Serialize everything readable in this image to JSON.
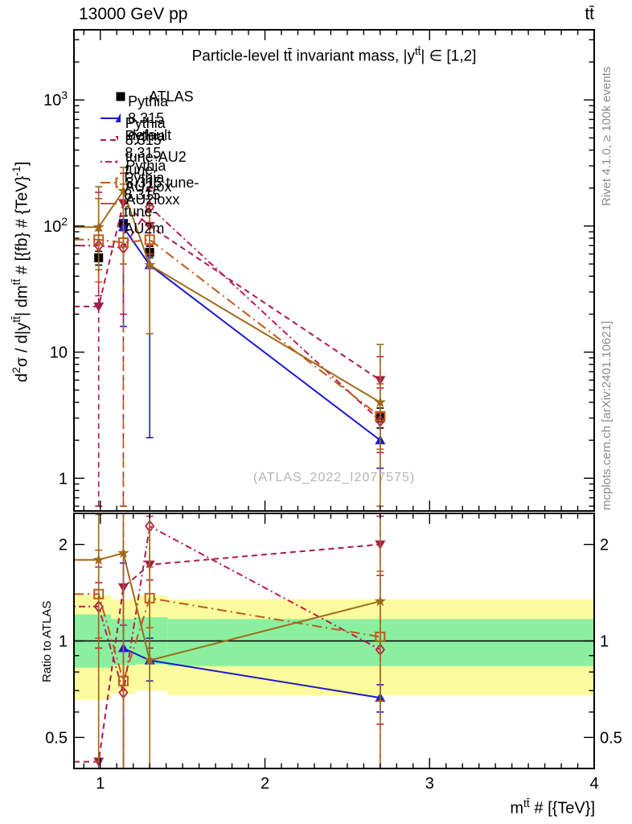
{
  "header": {
    "beam": "13000 GeV pp",
    "process": "tt̄"
  },
  "title_parts": {
    "pre": "Particle-level tt̄ invariant mass, |y",
    "sup": "tt̄",
    "post": "| ∈ [1,2]"
  },
  "watermark": "(ATLAS_2022_I2077575)",
  "side_notes": {
    "top": "Rivet 4.1.0, ≥ 100k events",
    "bottom": "mcplots.cern.ch [arXiv:2401.10621]"
  },
  "axes": {
    "main_y_label_parts": [
      "d",
      "2",
      "σ / d|y",
      "tt̄",
      "| dm",
      "tt̄",
      " # [{fb} # {TeV}",
      "-1",
      "]"
    ],
    "ratio_y_label": "Ratio to ATLAS",
    "x_label_parts": {
      "pre": "m",
      "sup": "tt̄",
      "post": " # [{TeV}]"
    }
  },
  "chart_data": {
    "type": "line",
    "title": "Particle-level ttbar invariant mass, |y_ttbar| in [1,2]",
    "x_unit": "TeV",
    "x": [
      0.99,
      1.14,
      1.3,
      2.7
    ],
    "x_range": [
      0.84,
      4.0
    ],
    "x_major_ticks": [
      1,
      2,
      3,
      4
    ],
    "x_minor_step": 0.1,
    "panels": {
      "main": {
        "y_scale": "log",
        "y_range": [
          0.55,
          3600
        ],
        "yticks": [
          {
            "v": 1,
            "base": "1",
            "exp": ""
          },
          {
            "v": 10,
            "base": "10",
            "exp": ""
          },
          {
            "v": 100,
            "base": "10",
            "exp": "2"
          },
          {
            "v": 1000,
            "base": "10",
            "exp": "3"
          }
        ]
      },
      "ratio": {
        "y_scale": "log",
        "y_range": [
          0.4,
          2.5
        ],
        "yticks": [
          {
            "v": 0.5,
            "base": "0.5",
            "exp": ""
          },
          {
            "v": 1,
            "base": "1",
            "exp": ""
          },
          {
            "v": 2,
            "base": "2",
            "exp": ""
          }
        ],
        "minor_ticks": [
          0.4,
          0.6,
          0.7,
          0.8,
          0.9
        ],
        "reference_line": 1.0,
        "bands": [
          {
            "x0": 0.84,
            "x1": 1.065,
            "yellow": [
              0.655,
              1.39
            ],
            "green": [
              0.825,
              1.21
            ]
          },
          {
            "x0": 1.065,
            "x1": 1.215,
            "yellow": [
              0.685,
              1.345
            ],
            "green": [
              0.84,
              1.17
            ]
          },
          {
            "x0": 1.215,
            "x1": 1.41,
            "yellow": [
              0.7,
              1.385
            ],
            "green": [
              0.845,
              1.185
            ]
          },
          {
            "x0": 1.41,
            "x1": 4.0,
            "yellow": [
              0.675,
              1.35
            ],
            "green": [
              0.835,
              1.17
            ]
          }
        ],
        "band_colors": {
          "yellow": "#fcfc9e",
          "green": "#8af0a0"
        }
      }
    },
    "series": [
      {
        "name": "ATLAS",
        "color": "#000000",
        "marker": "square-filled",
        "line": "none",
        "extend_left": false,
        "values": [
          56,
          105,
          62,
          3.0
        ],
        "errors": [
          [
            49,
            63
          ],
          [
            92,
            120
          ],
          [
            56,
            69
          ],
          [
            2.5,
            3.6
          ]
        ],
        "ratio_values": [
          1,
          1,
          1,
          1
        ],
        "ratio_errors": null
      },
      {
        "name": "Pythia 8.315 default",
        "color": "#1a1ad0",
        "marker": "triangle-up",
        "line": "solid",
        "extend_left": false,
        "values": [
          null,
          98,
          49,
          2.0
        ],
        "errors": [
          null,
          [
            16,
            112
          ],
          [
            2.1,
            58
          ],
          [
            1.2,
            3.3
          ]
        ],
        "ratio_values": [
          null,
          0.95,
          0.87,
          0.665
        ],
        "ratio_errors": [
          null,
          [
            0.4,
            1.75
          ],
          [
            0.75,
            1.02
          ],
          [
            0.6,
            0.73
          ]
        ]
      },
      {
        "name": "Pythia 8.315 tune-AU2",
        "color": "#a81a4e",
        "marker": "triangle-down",
        "line": "dashed",
        "extend_left": true,
        "values": [
          23,
          152,
          100,
          6.0
        ],
        "errors": [
          [
            0.6,
            92
          ],
          [
            0.6,
            262
          ],
          [
            70,
            145
          ],
          [
            3.3,
            9.2
          ]
        ],
        "ratio_values": [
          0.42,
          1.47,
          1.73,
          2.0
        ],
        "ratio_errors": [
          [
            0.4,
            1.52
          ],
          [
            0.4,
            2.5
          ],
          [
            0.95,
            2.5
          ],
          [
            0.4,
            2.45
          ]
        ]
      },
      {
        "name": "Pythia 8.315 tune-AU2lox",
        "color": "#bb1c50",
        "marker": "diamond-open",
        "line": "dashdot",
        "extend_left": true,
        "values": [
          70,
          67,
          142,
          2.85
        ],
        "errors": [
          [
            28,
            185
          ],
          [
            20,
            160
          ],
          [
            100,
            200
          ],
          [
            1.6,
            5.2
          ]
        ],
        "ratio_values": [
          1.28,
          0.69,
          2.28,
          0.94
        ],
        "ratio_errors": [
          [
            0.95,
            1.7
          ],
          [
            0.4,
            1.12
          ],
          [
            1.55,
            2.45
          ],
          [
            0.55,
            1.6
          ]
        ]
      },
      {
        "name": "Pythia 8.315 tune-AU2loxx",
        "color": "#c05a18",
        "marker": "square-open",
        "line": "dashdot-long",
        "extend_left": true,
        "values": [
          78,
          74,
          78,
          3.1
        ],
        "errors": [
          [
            36,
            165
          ],
          [
            0.6,
            215
          ],
          [
            60,
            103
          ],
          [
            1.7,
            5.6
          ]
        ],
        "ratio_values": [
          1.4,
          0.75,
          1.36,
          1.03
        ],
        "ratio_errors": [
          [
            1.02,
            1.92
          ],
          [
            0.4,
            2.5
          ],
          [
            1.1,
            1.7
          ],
          [
            0.65,
            1.65
          ]
        ]
      },
      {
        "name": "Pythia 8.315 tune-AU2m",
        "color": "#a06a1a",
        "marker": "star",
        "line": "solid",
        "extend_left": true,
        "values": [
          98,
          190,
          49,
          4.0
        ],
        "errors": [
          [
            45,
            205
          ],
          [
            50,
            292
          ],
          [
            14,
            150
          ],
          [
            0.6,
            11.5
          ]
        ],
        "ratio_values": [
          1.79,
          1.88,
          0.87,
          1.33
        ],
        "ratio_errors": [
          [
            0.42,
            2.48
          ],
          [
            0.4,
            2.5
          ],
          [
            0.4,
            2.5
          ],
          [
            0.4,
            2.5
          ]
        ]
      }
    ]
  }
}
